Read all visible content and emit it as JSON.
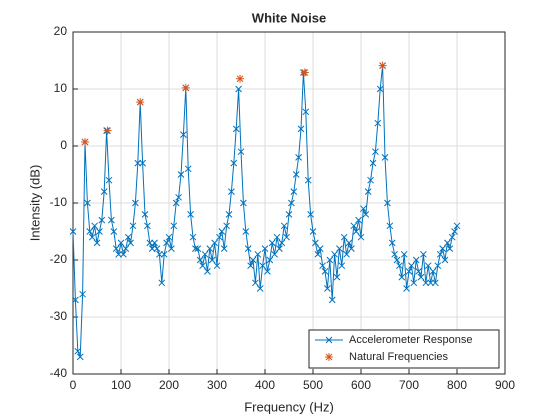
{
  "chart_data": {
    "type": "line",
    "title": "White Noise",
    "xlabel": "Frequency (Hz)",
    "ylabel": "Intensity (dB)",
    "xlim": [
      0,
      900
    ],
    "ylim": [
      -40,
      20
    ],
    "xticks": [
      0,
      100,
      200,
      300,
      400,
      500,
      600,
      700,
      800,
      900
    ],
    "yticks": [
      -40,
      -30,
      -20,
      -10,
      0,
      10,
      20
    ],
    "grid": true,
    "legend": "lower right",
    "series": [
      {
        "name": "Accelerometer Response",
        "color": "#0072BD",
        "marker": "x",
        "x": [
          0,
          5,
          10,
          15,
          20,
          25,
          30,
          35,
          40,
          45,
          50,
          55,
          60,
          65,
          70,
          75,
          80,
          85,
          90,
          95,
          100,
          105,
          110,
          115,
          120,
          125,
          130,
          135,
          140,
          145,
          150,
          155,
          160,
          165,
          170,
          175,
          180,
          185,
          190,
          195,
          200,
          205,
          210,
          215,
          220,
          225,
          230,
          235,
          240,
          245,
          250,
          255,
          260,
          265,
          270,
          275,
          280,
          285,
          290,
          295,
          300,
          305,
          310,
          315,
          320,
          325,
          330,
          335,
          340,
          345,
          350,
          355,
          360,
          365,
          370,
          375,
          380,
          385,
          390,
          395,
          400,
          405,
          410,
          415,
          420,
          425,
          430,
          435,
          440,
          445,
          450,
          455,
          460,
          465,
          470,
          475,
          480,
          485,
          490,
          495,
          500,
          505,
          510,
          515,
          520,
          525,
          530,
          535,
          540,
          545,
          550,
          555,
          560,
          565,
          570,
          575,
          580,
          585,
          590,
          595,
          600,
          605,
          610,
          615,
          620,
          625,
          630,
          635,
          640,
          645,
          650,
          655,
          660,
          665,
          670,
          675,
          680,
          685,
          690,
          695,
          700,
          705,
          710,
          715,
          720,
          725,
          730,
          735,
          740,
          745,
          750,
          755,
          760,
          765,
          770,
          775,
          780,
          785,
          790,
          795,
          800
        ],
        "values": [
          -15,
          -27,
          -36,
          -37,
          -26,
          0.7,
          -10,
          -15,
          -16,
          -14,
          -17,
          -15,
          -13,
          -8,
          2.7,
          -6,
          -13,
          -15,
          -18,
          -19,
          -17,
          -19,
          -18,
          -16,
          -17,
          -14,
          -10,
          -3,
          7.7,
          -3,
          -12,
          -14,
          -17,
          -18,
          -17,
          -18,
          -19,
          -24,
          -19,
          -17,
          -16,
          -18,
          -14,
          -10,
          -9,
          -5,
          2,
          10.2,
          -4,
          -12,
          -16,
          -18,
          -18,
          -20,
          -21,
          -19,
          -22,
          -18,
          -20,
          -17,
          -21,
          -16,
          -15,
          -18,
          -14,
          -12,
          -8,
          -3,
          3,
          10,
          -1,
          -10,
          -15,
          -18,
          -21,
          -20,
          -24,
          -19,
          -25,
          -21,
          -18,
          -22,
          -20,
          -17,
          -19,
          -16,
          -18,
          -17,
          -14,
          -16,
          -12,
          -10,
          -8,
          -5,
          -2,
          3,
          12.9,
          6,
          -6,
          -12,
          -15,
          -17,
          -19,
          -18,
          -21,
          -22,
          -25,
          -20,
          -27,
          -19,
          -23,
          -18,
          -21,
          -16,
          -19,
          -17,
          -18,
          -14,
          -15,
          -13,
          -16,
          -11,
          -12,
          -8,
          -6,
          -3,
          -1,
          4,
          10,
          14.1,
          -2,
          -10,
          -14,
          -17,
          -19,
          -20,
          -21,
          -23,
          -19,
          -25,
          -22,
          -21,
          -24,
          -20,
          -22,
          -23,
          -19,
          -24,
          -21,
          -24,
          -22,
          -24,
          -21,
          -19,
          -18,
          -20,
          -17,
          -18,
          -16,
          -15,
          -14
        ]
      },
      {
        "name": "Natural Frequencies",
        "color": "#D95319",
        "marker": "*",
        "type": "scatter",
        "x": [
          25,
          72,
          140,
          235,
          348,
          483,
          645
        ],
        "values": [
          0.7,
          2.7,
          7.7,
          10.2,
          11.8,
          12.9,
          14.1
        ]
      }
    ]
  }
}
